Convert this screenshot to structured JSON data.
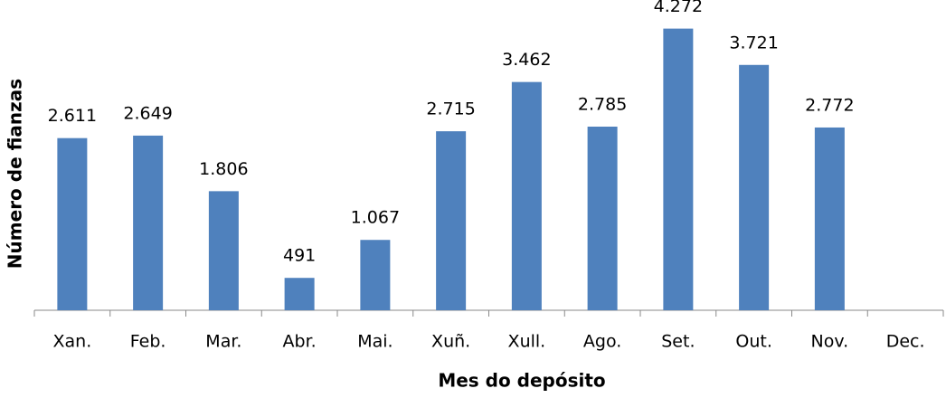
{
  "chart_data": {
    "type": "bar",
    "x_label": "Mes do depósito",
    "y_label": "Número de fianzas",
    "categories": [
      "Xan.",
      "Feb.",
      "Mar.",
      "Abr.",
      "Mai.",
      "Xuñ.",
      "Xull.",
      "Ago.",
      "Set.",
      "Out.",
      "Nov.",
      "Dec."
    ],
    "values": [
      2611,
      2649,
      1806,
      491,
      1067,
      2715,
      3462,
      2785,
      4272,
      3721,
      2772,
      null
    ],
    "value_labels": [
      "2.611",
      "2.649",
      "1.806",
      "491",
      "1.067",
      "2.715",
      "3.462",
      "2.785",
      "4.272",
      "3.721",
      "2.772",
      null
    ],
    "color": "#4f81bd",
    "ylim": [
      0,
      4500
    ]
  }
}
